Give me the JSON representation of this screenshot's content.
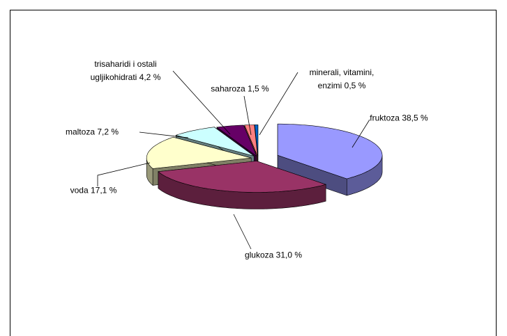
{
  "chart_data": {
    "type": "pie",
    "categories": [
      "fruktoza",
      "glukoza",
      "voda",
      "maltoza",
      "trisaharidi i ostali ugljikohidrati",
      "saharoza",
      "minerali, vitamini, enzimi"
    ],
    "values": [
      38.5,
      31.0,
      17.1,
      7.2,
      4.2,
      1.5,
      0.5
    ],
    "value_labels": [
      "38,5 %",
      "31,0 %",
      "17,1 %",
      "7,2 %",
      "4,2 %",
      "1,5 %",
      "0,5 %"
    ],
    "colors": [
      "#9999ff",
      "#993366",
      "#ffffcc",
      "#ccffff",
      "#660066",
      "#ff8080",
      "#0066cc"
    ]
  }
}
